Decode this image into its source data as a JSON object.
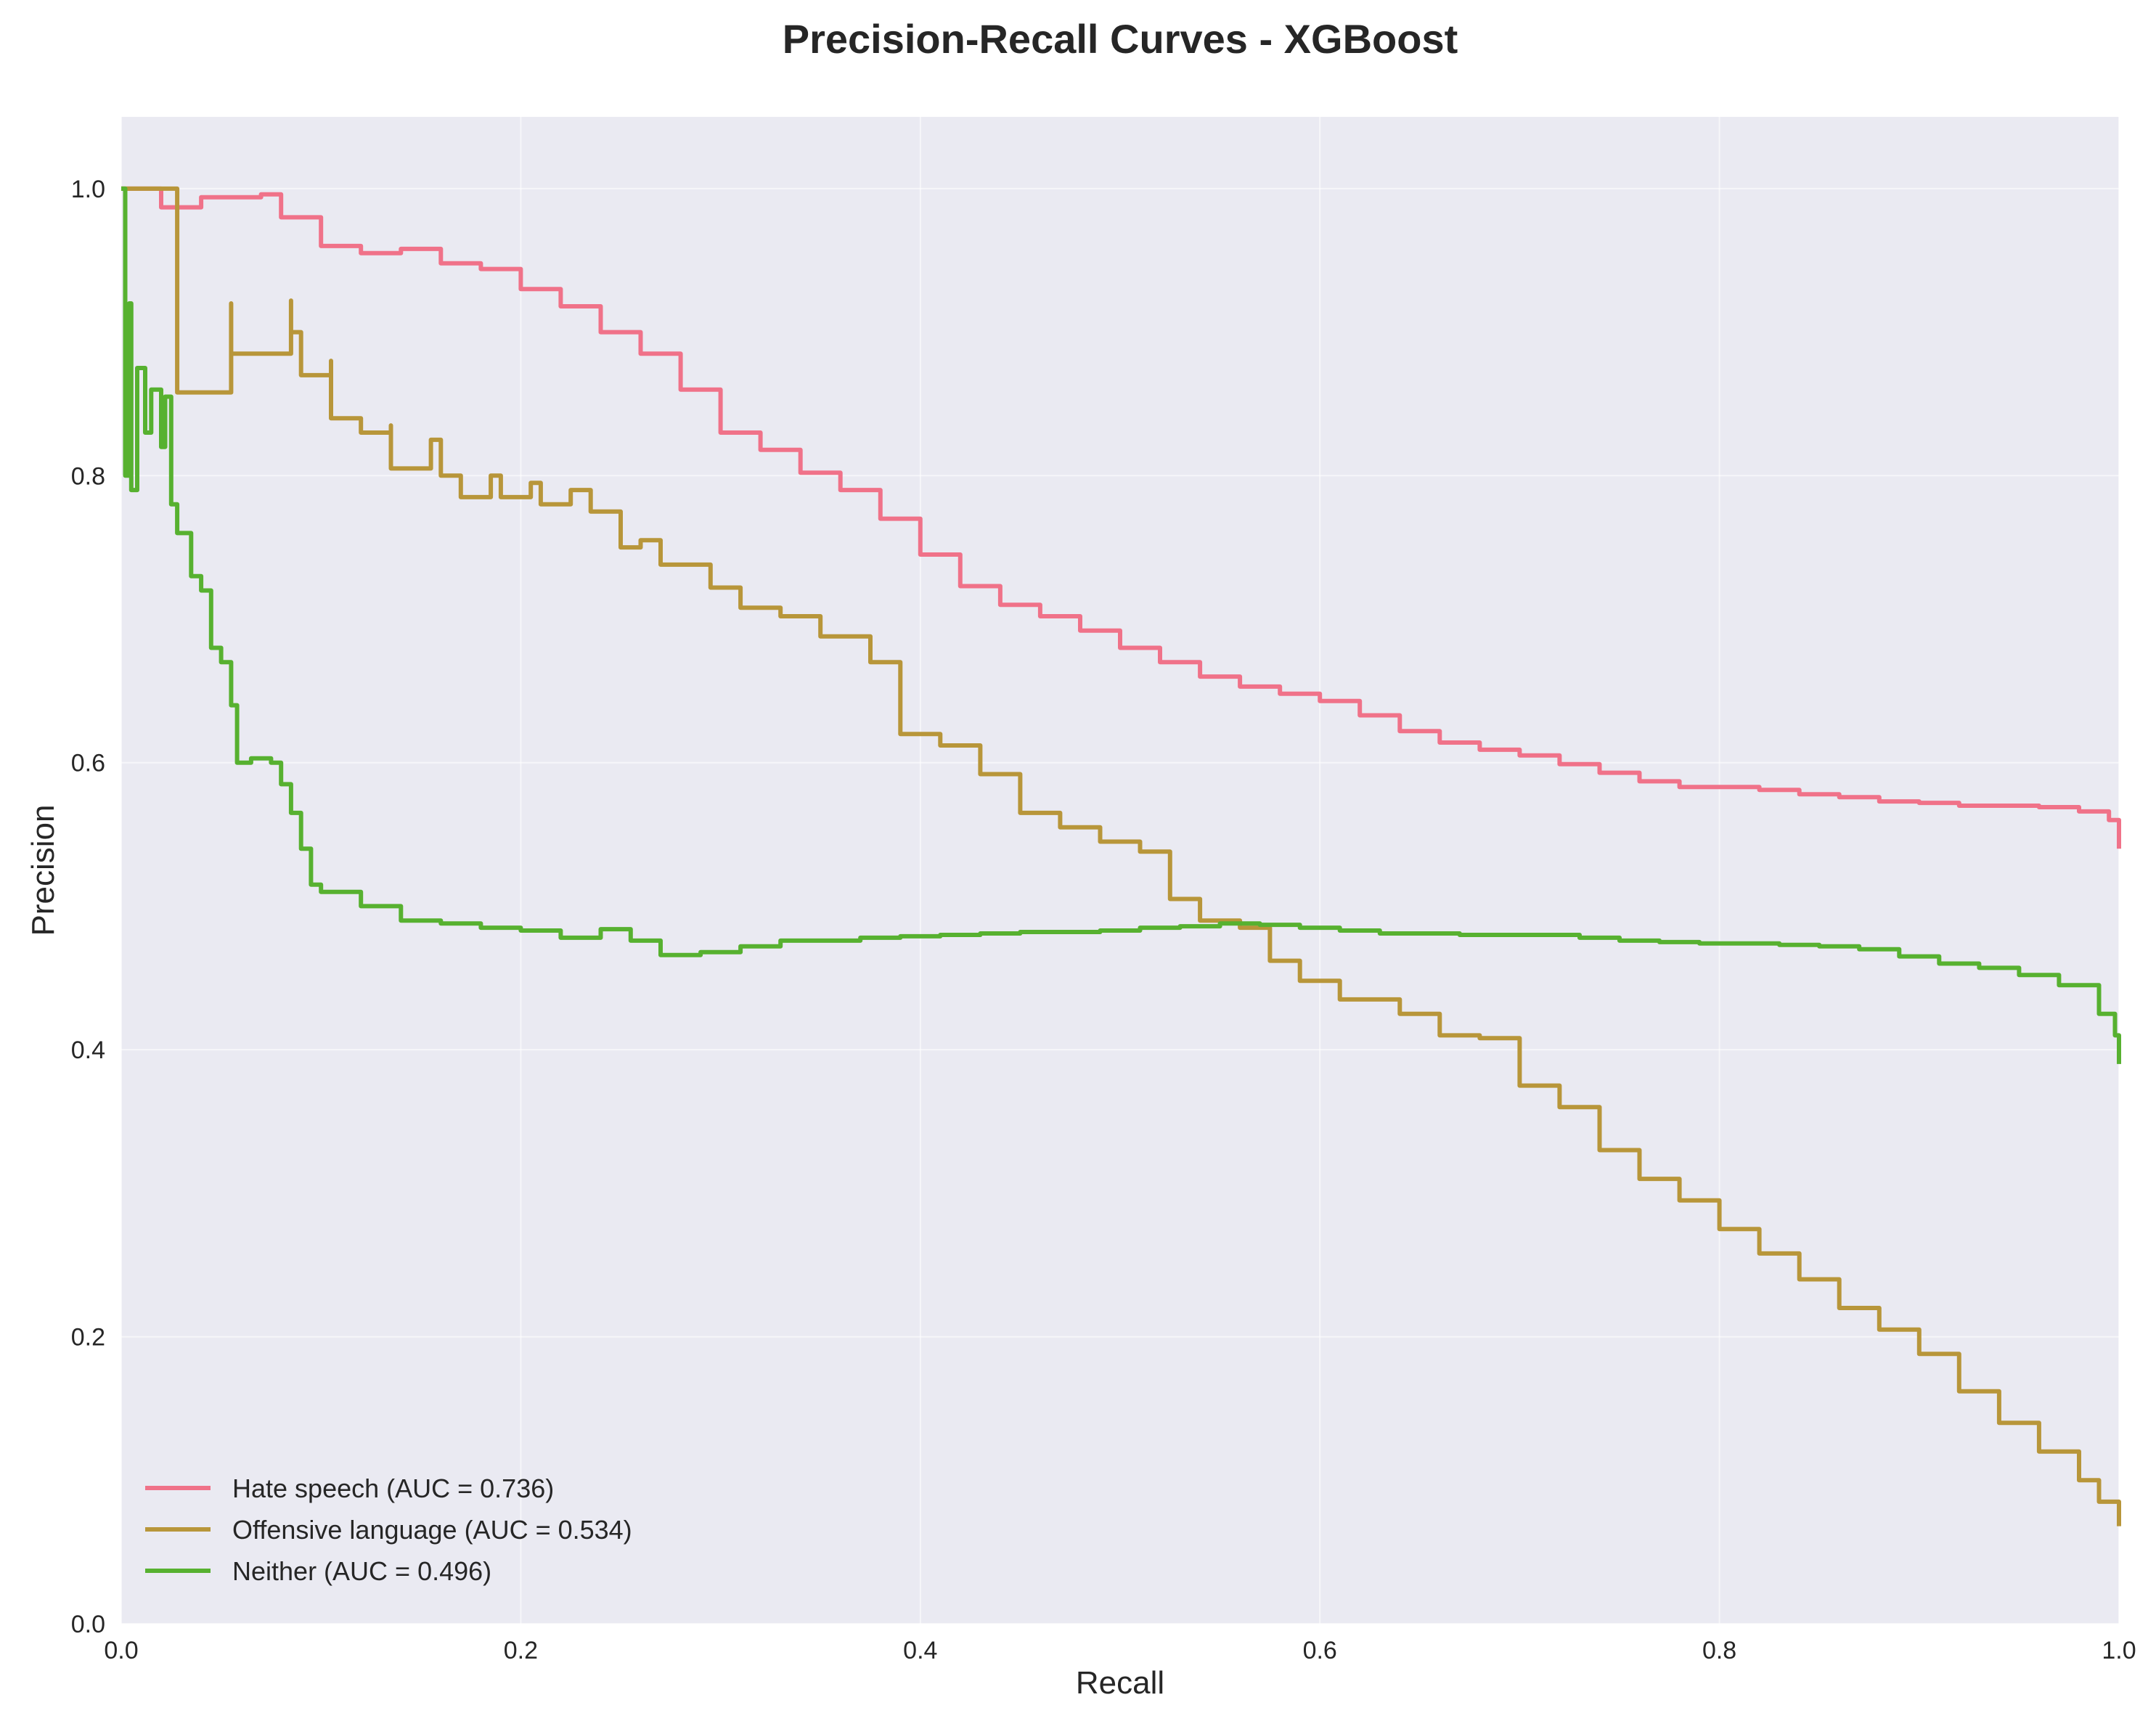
{
  "chart_data": {
    "type": "line",
    "title": "Precision-Recall Curves - XGBoost",
    "xlabel": "Recall",
    "ylabel": "Precision",
    "xlim": [
      0.0,
      1.0
    ],
    "ylim": [
      0.0,
      1.05
    ],
    "x_ticks": [
      "0.0",
      "0.2",
      "0.4",
      "0.6",
      "0.8",
      "1.0"
    ],
    "y_ticks": [
      "0.0",
      "0.2",
      "0.4",
      "0.6",
      "0.8",
      "1.0"
    ],
    "grid": true,
    "legend_position": "lower-left",
    "background_color": "#eaeaf2",
    "series": [
      {
        "name": "Hate speech (AUC = 0.736)",
        "color": "#f07289",
        "points": [
          [
            0.0,
            1.0
          ],
          [
            0.02,
            1.0
          ],
          [
            0.02,
            0.987
          ],
          [
            0.04,
            0.994
          ],
          [
            0.07,
            0.996
          ],
          [
            0.08,
            0.98
          ],
          [
            0.1,
            0.96
          ],
          [
            0.12,
            0.955
          ],
          [
            0.14,
            0.958
          ],
          [
            0.16,
            0.948
          ],
          [
            0.18,
            0.944
          ],
          [
            0.2,
            0.93
          ],
          [
            0.22,
            0.918
          ],
          [
            0.24,
            0.9
          ],
          [
            0.26,
            0.885
          ],
          [
            0.28,
            0.86
          ],
          [
            0.3,
            0.83
          ],
          [
            0.32,
            0.818
          ],
          [
            0.34,
            0.802
          ],
          [
            0.36,
            0.79
          ],
          [
            0.38,
            0.77
          ],
          [
            0.4,
            0.745
          ],
          [
            0.42,
            0.723
          ],
          [
            0.44,
            0.71
          ],
          [
            0.46,
            0.702
          ],
          [
            0.48,
            0.692
          ],
          [
            0.5,
            0.68
          ],
          [
            0.52,
            0.67
          ],
          [
            0.54,
            0.66
          ],
          [
            0.56,
            0.653
          ],
          [
            0.58,
            0.648
          ],
          [
            0.6,
            0.643
          ],
          [
            0.62,
            0.633
          ],
          [
            0.64,
            0.622
          ],
          [
            0.66,
            0.614
          ],
          [
            0.68,
            0.609
          ],
          [
            0.7,
            0.605
          ],
          [
            0.72,
            0.599
          ],
          [
            0.74,
            0.593
          ],
          [
            0.76,
            0.587
          ],
          [
            0.78,
            0.583
          ],
          [
            0.8,
            0.583
          ],
          [
            0.82,
            0.581
          ],
          [
            0.84,
            0.578
          ],
          [
            0.86,
            0.576
          ],
          [
            0.88,
            0.573
          ],
          [
            0.9,
            0.572
          ],
          [
            0.92,
            0.57
          ],
          [
            0.94,
            0.57
          ],
          [
            0.96,
            0.569
          ],
          [
            0.98,
            0.566
          ],
          [
            0.995,
            0.56
          ],
          [
            1.0,
            0.54
          ]
        ]
      },
      {
        "name": "Offensive language (AUC = 0.534)",
        "color": "#b8963a",
        "points": [
          [
            0.0,
            1.0
          ],
          [
            0.028,
            1.0
          ],
          [
            0.028,
            0.858
          ],
          [
            0.055,
            0.92
          ],
          [
            0.055,
            0.885
          ],
          [
            0.085,
            0.922
          ],
          [
            0.085,
            0.9
          ],
          [
            0.09,
            0.87
          ],
          [
            0.105,
            0.88
          ],
          [
            0.105,
            0.84
          ],
          [
            0.12,
            0.83
          ],
          [
            0.135,
            0.835
          ],
          [
            0.135,
            0.805
          ],
          [
            0.155,
            0.825
          ],
          [
            0.16,
            0.8
          ],
          [
            0.17,
            0.785
          ],
          [
            0.185,
            0.8
          ],
          [
            0.19,
            0.785
          ],
          [
            0.205,
            0.795
          ],
          [
            0.21,
            0.78
          ],
          [
            0.225,
            0.79
          ],
          [
            0.235,
            0.775
          ],
          [
            0.25,
            0.75
          ],
          [
            0.26,
            0.755
          ],
          [
            0.27,
            0.738
          ],
          [
            0.29,
            0.738
          ],
          [
            0.295,
            0.722
          ],
          [
            0.31,
            0.708
          ],
          [
            0.33,
            0.702
          ],
          [
            0.35,
            0.688
          ],
          [
            0.37,
            0.688
          ],
          [
            0.375,
            0.67
          ],
          [
            0.39,
            0.66
          ],
          [
            0.39,
            0.62
          ],
          [
            0.41,
            0.612
          ],
          [
            0.43,
            0.592
          ],
          [
            0.45,
            0.565
          ],
          [
            0.47,
            0.555
          ],
          [
            0.49,
            0.545
          ],
          [
            0.51,
            0.538
          ],
          [
            0.525,
            0.505
          ],
          [
            0.54,
            0.49
          ],
          [
            0.555,
            0.49
          ],
          [
            0.56,
            0.485
          ],
          [
            0.575,
            0.462
          ],
          [
            0.59,
            0.448
          ],
          [
            0.61,
            0.435
          ],
          [
            0.64,
            0.425
          ],
          [
            0.66,
            0.41
          ],
          [
            0.68,
            0.408
          ],
          [
            0.7,
            0.375
          ],
          [
            0.72,
            0.36
          ],
          [
            0.74,
            0.33
          ],
          [
            0.76,
            0.31
          ],
          [
            0.78,
            0.295
          ],
          [
            0.8,
            0.275
          ],
          [
            0.82,
            0.258
          ],
          [
            0.84,
            0.24
          ],
          [
            0.86,
            0.22
          ],
          [
            0.88,
            0.205
          ],
          [
            0.9,
            0.188
          ],
          [
            0.92,
            0.162
          ],
          [
            0.94,
            0.14
          ],
          [
            0.96,
            0.12
          ],
          [
            0.98,
            0.1
          ],
          [
            0.99,
            0.085
          ],
          [
            1.0,
            0.068
          ]
        ]
      },
      {
        "name": "Neither (AUC = 0.496)",
        "color": "#57b130",
        "points": [
          [
            0.0,
            1.0
          ],
          [
            0.002,
            0.8
          ],
          [
            0.004,
            0.92
          ],
          [
            0.005,
            0.79
          ],
          [
            0.008,
            0.875
          ],
          [
            0.012,
            0.83
          ],
          [
            0.015,
            0.86
          ],
          [
            0.02,
            0.82
          ],
          [
            0.022,
            0.855
          ],
          [
            0.025,
            0.78
          ],
          [
            0.028,
            0.76
          ],
          [
            0.035,
            0.73
          ],
          [
            0.04,
            0.72
          ],
          [
            0.045,
            0.68
          ],
          [
            0.05,
            0.67
          ],
          [
            0.055,
            0.64
          ],
          [
            0.058,
            0.6
          ],
          [
            0.065,
            0.603
          ],
          [
            0.075,
            0.6
          ],
          [
            0.08,
            0.585
          ],
          [
            0.085,
            0.565
          ],
          [
            0.09,
            0.54
          ],
          [
            0.095,
            0.515
          ],
          [
            0.1,
            0.51
          ],
          [
            0.12,
            0.5
          ],
          [
            0.14,
            0.49
          ],
          [
            0.16,
            0.488
          ],
          [
            0.18,
            0.485
          ],
          [
            0.2,
            0.483
          ],
          [
            0.22,
            0.478
          ],
          [
            0.24,
            0.484
          ],
          [
            0.255,
            0.476
          ],
          [
            0.27,
            0.466
          ],
          [
            0.29,
            0.468
          ],
          [
            0.31,
            0.472
          ],
          [
            0.33,
            0.476
          ],
          [
            0.35,
            0.476
          ],
          [
            0.37,
            0.478
          ],
          [
            0.39,
            0.479
          ],
          [
            0.41,
            0.48
          ],
          [
            0.43,
            0.481
          ],
          [
            0.45,
            0.482
          ],
          [
            0.47,
            0.482
          ],
          [
            0.49,
            0.483
          ],
          [
            0.51,
            0.485
          ],
          [
            0.53,
            0.486
          ],
          [
            0.55,
            0.488
          ],
          [
            0.57,
            0.487
          ],
          [
            0.59,
            0.485
          ],
          [
            0.61,
            0.483
          ],
          [
            0.63,
            0.481
          ],
          [
            0.65,
            0.481
          ],
          [
            0.67,
            0.48
          ],
          [
            0.69,
            0.48
          ],
          [
            0.71,
            0.48
          ],
          [
            0.73,
            0.478
          ],
          [
            0.75,
            0.476
          ],
          [
            0.77,
            0.475
          ],
          [
            0.79,
            0.474
          ],
          [
            0.81,
            0.474
          ],
          [
            0.83,
            0.473
          ],
          [
            0.85,
            0.472
          ],
          [
            0.87,
            0.47
          ],
          [
            0.89,
            0.465
          ],
          [
            0.91,
            0.46
          ],
          [
            0.93,
            0.457
          ],
          [
            0.95,
            0.452
          ],
          [
            0.97,
            0.445
          ],
          [
            0.99,
            0.425
          ],
          [
            0.998,
            0.41
          ],
          [
            1.0,
            0.39
          ]
        ]
      }
    ]
  }
}
